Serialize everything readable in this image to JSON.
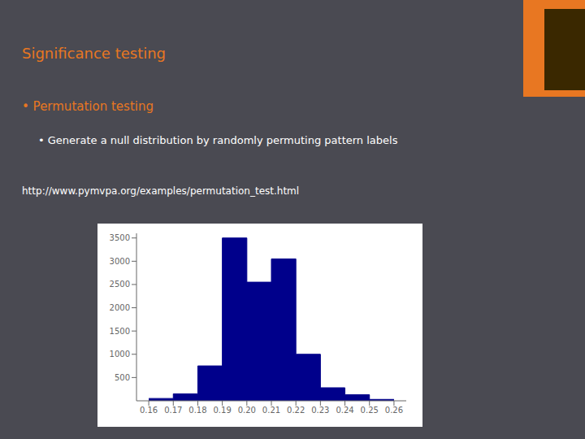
{
  "chart_data": {
    "type": "histogram",
    "title": "Significance testing",
    "annotations": [
      "•  Permutation testing",
      "• Generate a null distribution by randomly permuting pattern labels",
      "http://www.pymvpa.org/examples/permutation_test.html"
    ],
    "bins": [
      0.16,
      0.17,
      0.18,
      0.19,
      0.2,
      0.21,
      0.22,
      0.23,
      0.24,
      0.25,
      0.26
    ],
    "values": [
      50,
      150,
      750,
      3500,
      2550,
      3050,
      1000,
      280,
      130,
      30
    ],
    "color": "#00008B",
    "xlim": [
      0.155,
      0.265
    ],
    "xticks": [
      0.16,
      0.17,
      0.18,
      0.19,
      {
        "value": 0.2,
        "label": "0.20"
      },
      0.21,
      0.22,
      0.23,
      0.24,
      0.25,
      0.26
    ],
    "ylim": [
      0,
      3600
    ],
    "yticks": [
      500,
      1000,
      1500,
      2000,
      2500,
      3000,
      3500
    ],
    "grid": false
  }
}
